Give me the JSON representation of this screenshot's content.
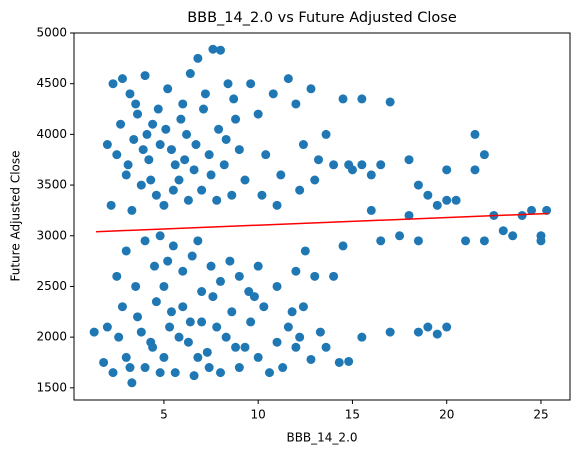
{
  "chart_data": {
    "type": "scatter",
    "title": "BBB_14_2.0 vs Future Adjusted Close",
    "x_label": "BBB_14_2.0",
    "y_label": "Future Adjusted Close",
    "xlim": [
      0.23,
      26.54
    ],
    "ylim": [
      1380,
      5000
    ],
    "xticks": [
      5,
      10,
      15,
      20,
      25
    ],
    "yticks": [
      1500,
      2000,
      2500,
      3000,
      3500,
      4000,
      4500,
      5000
    ],
    "series": [
      {
        "color": "#1f77b4",
        "x": [
          2.3,
          2.8,
          3.2,
          3.6,
          4.0,
          4.4,
          4.8,
          5.2,
          5.6,
          6.0,
          6.4,
          6.8,
          7.2,
          7.6,
          8.0,
          8.4,
          8.8,
          2.5,
          3.0,
          3.4,
          3.8,
          4.2,
          4.6,
          5.0,
          5.4,
          5.8,
          6.2,
          6.6,
          7.0,
          7.4,
          7.8,
          8.2,
          8.6,
          9.0,
          2.0,
          2.2,
          2.7,
          3.1,
          3.5,
          3.9,
          4.3,
          4.7,
          5.1,
          5.5,
          5.9,
          6.3,
          6.7,
          7.1,
          7.5,
          7.9,
          8.3,
          8.7,
          9.3,
          9.6,
          10.0,
          10.4,
          10.8,
          11.2,
          11.6,
          12.0,
          12.4,
          12.8,
          13.2,
          13.6,
          14.0,
          14.5,
          15.0,
          15.5,
          16.0,
          16.5,
          17.0,
          18.0,
          18.5,
          19.0,
          20.0,
          21.5,
          22.0,
          10.2,
          11.0,
          12.2,
          13.0,
          14.8,
          3.3,
          4.1,
          6.1,
          3.0,
          4.0,
          4.5,
          5.0,
          5.5,
          6.0,
          6.5,
          7.0,
          7.5,
          8.0,
          8.5,
          9.0,
          10.0,
          11.0,
          12.0,
          13.0,
          14.0,
          14.5,
          2.5,
          3.5,
          5.2,
          6.8,
          4.8,
          9.5,
          12.5,
          15.5,
          16.5,
          17.5,
          18.0,
          18.5,
          19.5,
          20.0,
          20.5,
          21.0,
          21.5,
          22.0,
          22.5,
          23.0,
          23.5,
          24.0,
          24.5,
          25.0,
          25.3,
          25.0,
          16.0,
          1.3,
          1.8,
          2.0,
          2.3,
          2.6,
          3.0,
          3.3,
          3.6,
          4.0,
          4.3,
          4.6,
          5.0,
          5.3,
          5.6,
          6.0,
          6.3,
          6.6,
          7.0,
          7.3,
          7.6,
          8.0,
          8.3,
          8.6,
          9.0,
          9.3,
          9.6,
          10.0,
          10.3,
          10.6,
          11.0,
          11.3,
          11.6,
          12.0,
          12.4,
          12.8,
          13.3,
          13.6,
          14.3,
          14.8,
          15.5,
          17.0,
          18.5,
          19.0,
          19.5,
          20.0,
          2.8,
          3.8,
          4.8,
          5.8,
          6.8,
          7.8,
          8.8,
          3.2,
          4.4,
          5.4,
          6.4,
          7.4,
          9.8,
          11.8,
          12.2
        ],
        "values": [
          4500,
          4550,
          4400,
          4200,
          4580,
          4100,
          3900,
          4450,
          3700,
          4300,
          4600,
          4750,
          4400,
          4840,
          4830,
          4500,
          4150,
          3800,
          3600,
          3950,
          3500,
          3750,
          3400,
          3300,
          3850,
          3550,
          4000,
          3650,
          3450,
          3800,
          3350,
          3700,
          3400,
          3850,
          3900,
          3300,
          4100,
          3700,
          4300,
          3850,
          3550,
          4250,
          4050,
          3450,
          4150,
          3350,
          3900,
          4250,
          3600,
          4050,
          3950,
          4350,
          3550,
          4500,
          4200,
          3800,
          4400,
          3600,
          4550,
          4300,
          3900,
          4450,
          3750,
          4000,
          3700,
          4350,
          3650,
          4350,
          3600,
          3700,
          4320,
          3750,
          3500,
          3400,
          3650,
          4000,
          3800,
          3400,
          3300,
          3450,
          3550,
          3700,
          3250,
          4000,
          3750,
          2850,
          2950,
          2700,
          2500,
          2900,
          2650,
          2800,
          2450,
          2700,
          2550,
          2750,
          2600,
          2700,
          2500,
          2650,
          2600,
          2600,
          2900,
          2600,
          2500,
          2750,
          2950,
          3000,
          2450,
          2850,
          3700,
          2950,
          3000,
          3200,
          2950,
          3300,
          3350,
          3350,
          2950,
          3650,
          2950,
          3200,
          3050,
          3000,
          3200,
          3250,
          3000,
          3250,
          2950,
          3250,
          2050,
          1750,
          2100,
          1650,
          2000,
          1800,
          1550,
          2200,
          1700,
          1950,
          2350,
          1800,
          2100,
          1650,
          2300,
          1950,
          1620,
          2150,
          1850,
          2400,
          1650,
          2000,
          2250,
          1700,
          1900,
          2150,
          1800,
          2300,
          1650,
          1950,
          1700,
          2100,
          1900,
          2300,
          1780,
          2050,
          1900,
          1750,
          1760,
          2000,
          2050,
          2050,
          2100,
          2030,
          2100,
          2300,
          2050,
          1650,
          2000,
          1800,
          2100,
          1900,
          1700,
          1900,
          2250,
          2150,
          1700,
          2400,
          2250,
          2000
        ]
      }
    ],
    "trend_line": {
      "color": "red",
      "x": [
        1.4,
        25.4
      ],
      "values": [
        3040,
        3220
      ]
    }
  }
}
